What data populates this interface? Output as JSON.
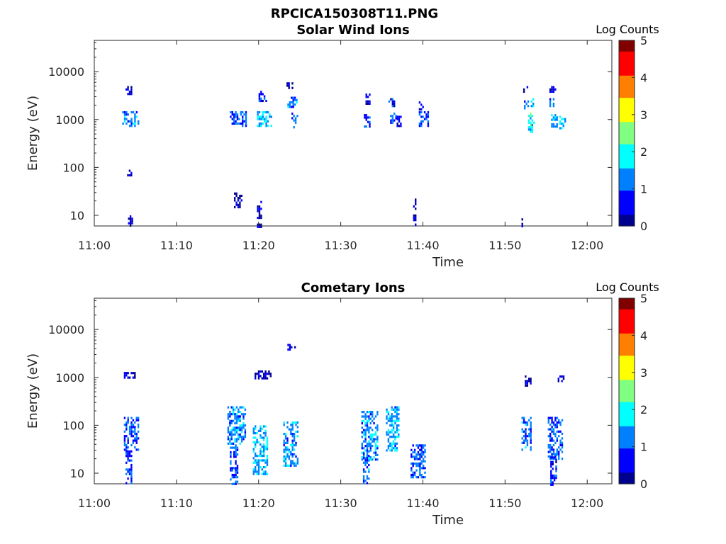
{
  "figure_title": "RPCICA150308T11.PNG",
  "colormap": [
    "#00008f",
    "#0000ff",
    "#0080ff",
    "#00ffff",
    "#80ff80",
    "#ffff00",
    "#ff8000",
    "#ff0000",
    "#800000"
  ],
  "chart_data": [
    {
      "type": "heatmap",
      "title": "Solar Wind Ions",
      "xlabel": "Time",
      "ylabel": "Energy (eV)",
      "x_ticks": [
        "11:00",
        "11:10",
        "11:20",
        "11:30",
        "11:40",
        "11:50",
        "12:00"
      ],
      "x_range_minutes": [
        0,
        63
      ],
      "y_scale": "log",
      "y_ticks": [
        "10",
        "100",
        "1000",
        "10000"
      ],
      "y_range_eV": [
        6,
        45000
      ],
      "colorbar": {
        "label": "Log Counts",
        "ticks": [
          "0",
          "1",
          "2",
          "3",
          "4",
          "5"
        ],
        "range": [
          0,
          5
        ]
      },
      "blobs": [
        {
          "t0": 3.4,
          "t1": 5.4,
          "e0": 700,
          "e1": 1500,
          "c": 1.2
        },
        {
          "t0": 3.8,
          "t1": 4.6,
          "e0": 3500,
          "e1": 5000,
          "c": 0.2
        },
        {
          "t0": 4.1,
          "t1": 4.6,
          "e0": 6,
          "e1": 10,
          "c": 0.2
        },
        {
          "t0": 4.0,
          "t1": 4.5,
          "e0": 70,
          "e1": 90,
          "c": 0.2
        },
        {
          "t0": 16.5,
          "t1": 18.5,
          "e0": 700,
          "e1": 1500,
          "c": 1.0
        },
        {
          "t0": 17.0,
          "t1": 18.0,
          "e0": 15,
          "e1": 30,
          "c": 0.2
        },
        {
          "t0": 19.8,
          "t1": 21.5,
          "e0": 700,
          "e1": 1500,
          "c": 1.6
        },
        {
          "t0": 20.0,
          "t1": 21.0,
          "e0": 2500,
          "e1": 4000,
          "c": 0.8
        },
        {
          "t0": 19.8,
          "t1": 20.3,
          "e0": 6,
          "e1": 20,
          "c": 0.2
        },
        {
          "t0": 23.5,
          "t1": 24.6,
          "e0": 1800,
          "e1": 3000,
          "c": 1.2
        },
        {
          "t0": 24.0,
          "t1": 24.8,
          "e0": 700,
          "e1": 1400,
          "c": 0.9
        },
        {
          "t0": 23.4,
          "t1": 24.1,
          "e0": 4500,
          "e1": 6000,
          "c": 0.3
        },
        {
          "t0": 32.8,
          "t1": 33.6,
          "e0": 700,
          "e1": 1300,
          "c": 0.8
        },
        {
          "t0": 32.8,
          "t1": 33.6,
          "e0": 2200,
          "e1": 3500,
          "c": 0.5
        },
        {
          "t0": 35.8,
          "t1": 36.7,
          "e0": 900,
          "e1": 1400,
          "c": 1.0
        },
        {
          "t0": 35.8,
          "t1": 36.6,
          "e0": 2000,
          "e1": 2800,
          "c": 0.6
        },
        {
          "t0": 36.8,
          "t1": 37.4,
          "e0": 700,
          "e1": 1200,
          "c": 0.6
        },
        {
          "t0": 39.5,
          "t1": 40.7,
          "e0": 700,
          "e1": 1500,
          "c": 0.9
        },
        {
          "t0": 39.5,
          "t1": 40.0,
          "e0": 1700,
          "e1": 2400,
          "c": 0.5
        },
        {
          "t0": 38.8,
          "t1": 39.1,
          "e0": 6,
          "e1": 25,
          "c": 0.2
        },
        {
          "t0": 52.3,
          "t1": 53.4,
          "e0": 1800,
          "e1": 2800,
          "c": 1.3
        },
        {
          "t0": 52.8,
          "t1": 53.6,
          "e0": 550,
          "e1": 1400,
          "c": 1.9
        },
        {
          "t0": 55.4,
          "t1": 56.2,
          "e0": 2000,
          "e1": 2800,
          "c": 1.3
        },
        {
          "t0": 55.6,
          "t1": 56.4,
          "e0": 700,
          "e1": 1300,
          "c": 1.4
        },
        {
          "t0": 56.6,
          "t1": 57.3,
          "e0": 650,
          "e1": 1200,
          "c": 1.7
        },
        {
          "t0": 52.2,
          "t1": 52.8,
          "e0": 4000,
          "e1": 5000,
          "c": 0.3
        },
        {
          "t0": 55.4,
          "t1": 56.1,
          "e0": 4000,
          "e1": 5000,
          "c": 0.3
        },
        {
          "t0": 52.0,
          "t1": 52.2,
          "e0": 6,
          "e1": 12,
          "c": 0.2
        }
      ]
    },
    {
      "type": "heatmap",
      "title": "Cometary Ions",
      "xlabel": "Time",
      "ylabel": "Energy (eV)",
      "x_ticks": [
        "11:00",
        "11:10",
        "11:20",
        "11:30",
        "11:40",
        "11:50",
        "12:00"
      ],
      "x_range_minutes": [
        0,
        63
      ],
      "y_scale": "log",
      "y_ticks": [
        "10",
        "100",
        "1000",
        "10000"
      ],
      "y_range_eV": [
        6,
        45000
      ],
      "colorbar": {
        "label": "Log Counts",
        "ticks": [
          "0",
          "1",
          "2",
          "3",
          "4",
          "5"
        ],
        "range": [
          0,
          5
        ]
      },
      "blobs": [
        {
          "t0": 3.6,
          "t1": 5.4,
          "e0": 30,
          "e1": 150,
          "c": 1.0
        },
        {
          "t0": 3.8,
          "t1": 4.6,
          "e0": 6,
          "e1": 30,
          "c": 0.9
        },
        {
          "t0": 3.6,
          "t1": 5.0,
          "e0": 1000,
          "e1": 1300,
          "c": 0.2
        },
        {
          "t0": 16.2,
          "t1": 18.3,
          "e0": 40,
          "e1": 250,
          "c": 1.3
        },
        {
          "t0": 16.5,
          "t1": 17.5,
          "e0": 6,
          "e1": 40,
          "c": 1.0
        },
        {
          "t0": 19.3,
          "t1": 21.0,
          "e0": 10,
          "e1": 100,
          "c": 1.5
        },
        {
          "t0": 19.5,
          "t1": 21.5,
          "e0": 1000,
          "e1": 1400,
          "c": 0.3
        },
        {
          "t0": 23.0,
          "t1": 24.8,
          "e0": 15,
          "e1": 120,
          "c": 1.3
        },
        {
          "t0": 23.5,
          "t1": 24.4,
          "e0": 4000,
          "e1": 5000,
          "c": 0.3
        },
        {
          "t0": 32.5,
          "t1": 34.5,
          "e0": 20,
          "e1": 200,
          "c": 1.3
        },
        {
          "t0": 32.7,
          "t1": 33.5,
          "e0": 6,
          "e1": 30,
          "c": 1.1
        },
        {
          "t0": 35.5,
          "t1": 37.0,
          "e0": 30,
          "e1": 250,
          "c": 1.4
        },
        {
          "t0": 38.5,
          "t1": 40.2,
          "e0": 8,
          "e1": 40,
          "c": 1.0
        },
        {
          "t0": 52.0,
          "t1": 53.2,
          "e0": 30,
          "e1": 150,
          "c": 1.2
        },
        {
          "t0": 52.4,
          "t1": 53.1,
          "e0": 700,
          "e1": 1100,
          "c": 0.3
        },
        {
          "t0": 55.2,
          "t1": 57.0,
          "e0": 20,
          "e1": 150,
          "c": 1.1
        },
        {
          "t0": 55.5,
          "t1": 56.3,
          "e0": 6,
          "e1": 25,
          "c": 0.7
        },
        {
          "t0": 56.2,
          "t1": 57.2,
          "e0": 800,
          "e1": 1100,
          "c": 0.3
        }
      ]
    }
  ]
}
